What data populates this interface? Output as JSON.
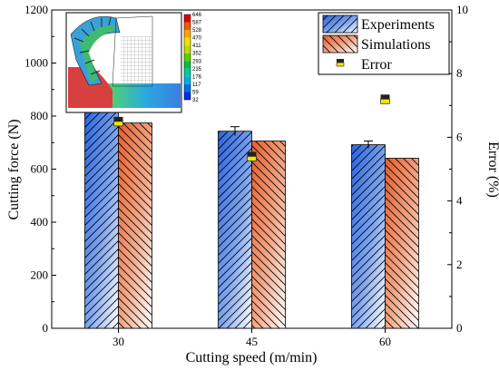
{
  "chart_data": {
    "type": "bar",
    "categories": [
      "30",
      "45",
      "60"
    ],
    "xlabel": "Cutting speed (m/min)",
    "ylabel": "Cutting force (N)",
    "y2label": "Error (%)",
    "ylim": [
      0,
      1200
    ],
    "y2lim": [
      0,
      10
    ],
    "yticks": [
      "0",
      "200",
      "400",
      "600",
      "800",
      "1000",
      "1200"
    ],
    "y2ticks": [
      "0",
      "2",
      "4",
      "6",
      "8",
      "10"
    ],
    "series": [
      {
        "name": "Experiments",
        "values": [
          828,
          743,
          692
        ],
        "errors": [
          15,
          17,
          14
        ],
        "color": "#2f6fe0"
      },
      {
        "name": "Simulations",
        "values": [
          774,
          706,
          641
        ],
        "color": "#e8683a"
      }
    ],
    "error_series": {
      "name": "Error",
      "values": [
        6.5,
        5.4,
        7.2
      ],
      "color": "#f2e600"
    },
    "legend_position": "top-right",
    "inset": {
      "colorbar_labels": [
        "646",
        "587",
        "528",
        "470",
        "411",
        "352",
        "293",
        "235",
        "176",
        "117",
        "59",
        "32"
      ],
      "colorbar_colors": [
        "#e00000",
        "#f25a00",
        "#f6a800",
        "#f2e000",
        "#b8e000",
        "#58d000",
        "#00c040",
        "#00c8a0",
        "#00b0e0",
        "#0070f0",
        "#0030e0",
        "#1a10b0"
      ]
    }
  }
}
